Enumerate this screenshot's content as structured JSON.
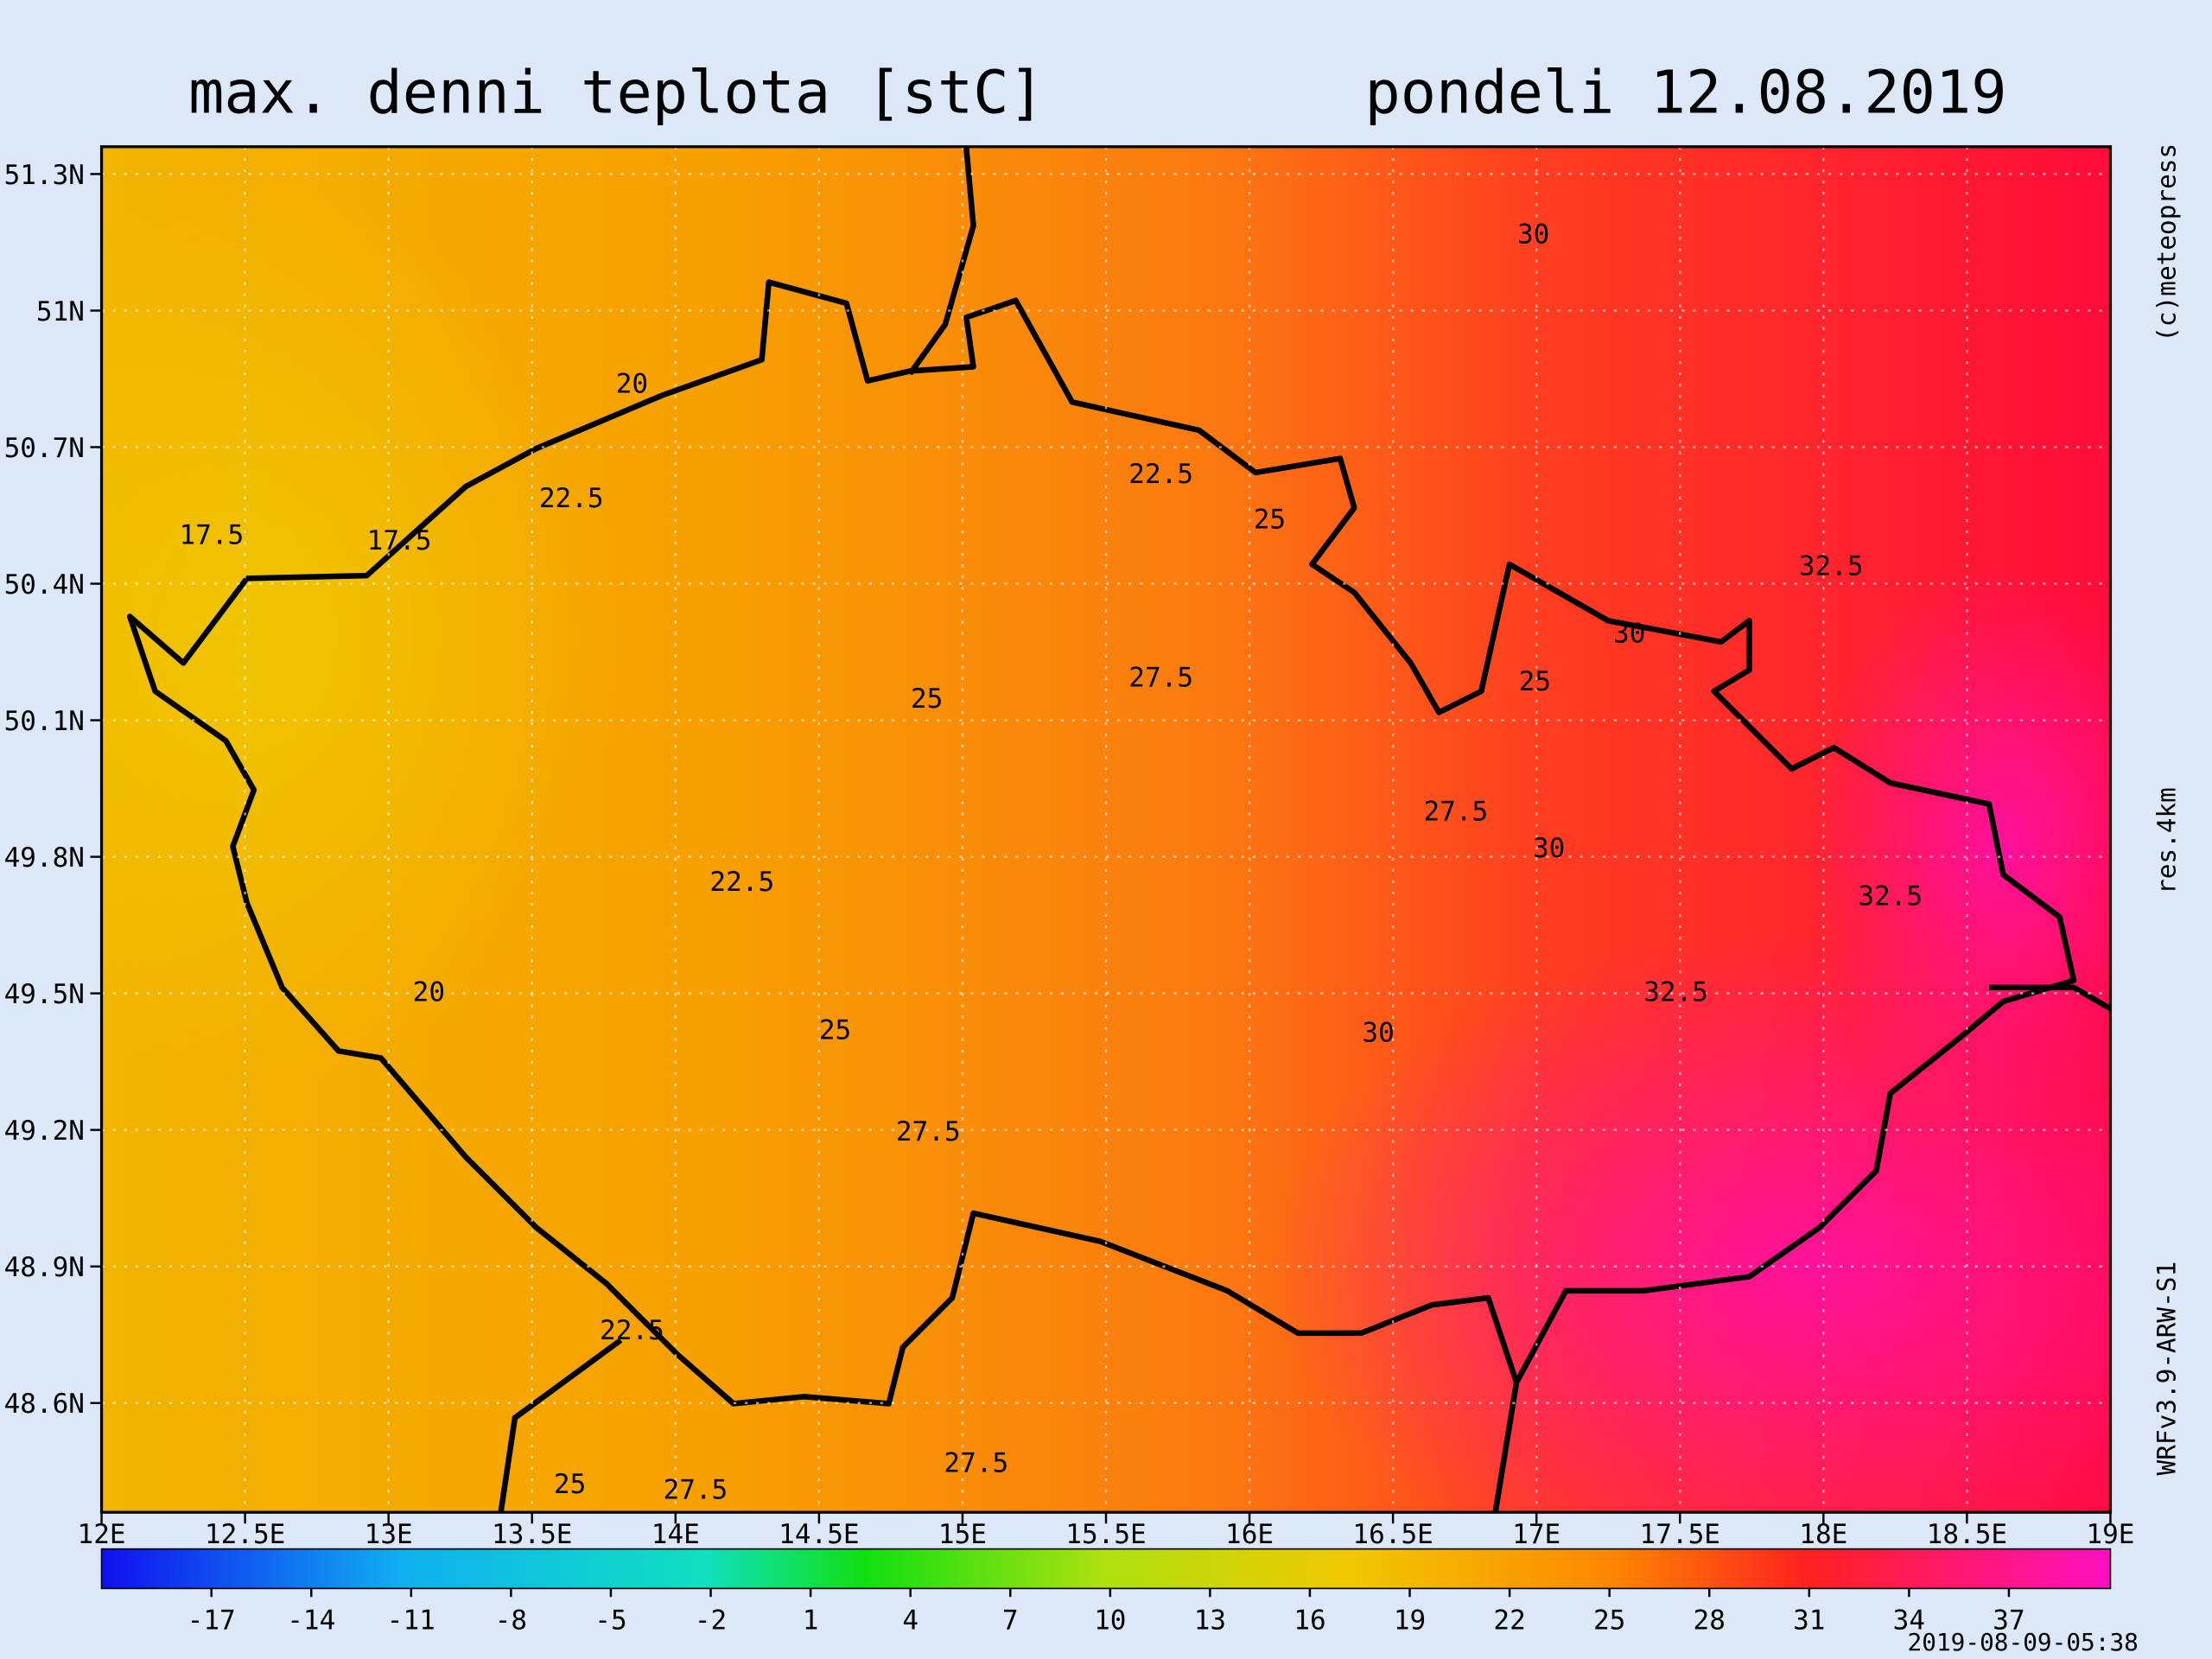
{
  "title": "max. denni teplota [stC]",
  "date": "pondeli 12.08.2019",
  "map": {
    "xlim": [
      12,
      19
    ],
    "ylim": [
      48.36,
      51.36
    ],
    "xticks": [
      {
        "value": 12,
        "label": "12E"
      },
      {
        "value": 12.5,
        "label": "12.5E"
      },
      {
        "value": 13,
        "label": "13E"
      },
      {
        "value": 13.5,
        "label": "13.5E"
      },
      {
        "value": 14,
        "label": "14E"
      },
      {
        "value": 14.5,
        "label": "14.5E"
      },
      {
        "value": 15,
        "label": "15E"
      },
      {
        "value": 15.5,
        "label": "15.5E"
      },
      {
        "value": 16,
        "label": "16E"
      },
      {
        "value": 16.5,
        "label": "16.5E"
      },
      {
        "value": 17,
        "label": "17E"
      },
      {
        "value": 17.5,
        "label": "17.5E"
      },
      {
        "value": 18,
        "label": "18E"
      },
      {
        "value": 18.5,
        "label": "18.5E"
      },
      {
        "value": 19,
        "label": "19E"
      }
    ],
    "yticks": [
      {
        "value": 51.3,
        "label": "51.3N"
      },
      {
        "value": 51,
        "label": "51N"
      },
      {
        "value": 50.7,
        "label": "50.7N"
      },
      {
        "value": 50.4,
        "label": "50.4N"
      },
      {
        "value": 50.1,
        "label": "50.1N"
      },
      {
        "value": 49.8,
        "label": "49.8N"
      },
      {
        "value": 49.5,
        "label": "49.5N"
      },
      {
        "value": 49.2,
        "label": "49.2N"
      },
      {
        "value": 48.9,
        "label": "48.9N"
      },
      {
        "value": 48.6,
        "label": "48.6N"
      }
    ],
    "contour_labels": [
      20,
      17.5,
      17.5,
      22.5,
      22.5,
      25,
      30,
      32.5,
      30,
      25,
      27.5,
      25,
      27.5,
      30,
      32.5,
      22.5,
      20,
      32.5,
      25,
      30,
      27.5,
      22.5,
      25,
      27.5,
      27.5
    ]
  },
  "colorbar": {
    "lim": [
      -20.3,
      40.05
    ],
    "ticks": [
      -17,
      -14,
      -11,
      -8,
      -5,
      -2,
      1,
      4,
      7,
      10,
      13,
      16,
      19,
      22,
      25,
      28,
      31,
      34,
      37
    ]
  },
  "credit": "(c)meteopress",
  "resolution": "res.4km",
  "model": "WRFv3.9-ARW-S1",
  "timestamp": "2019-08-09-05:38"
}
